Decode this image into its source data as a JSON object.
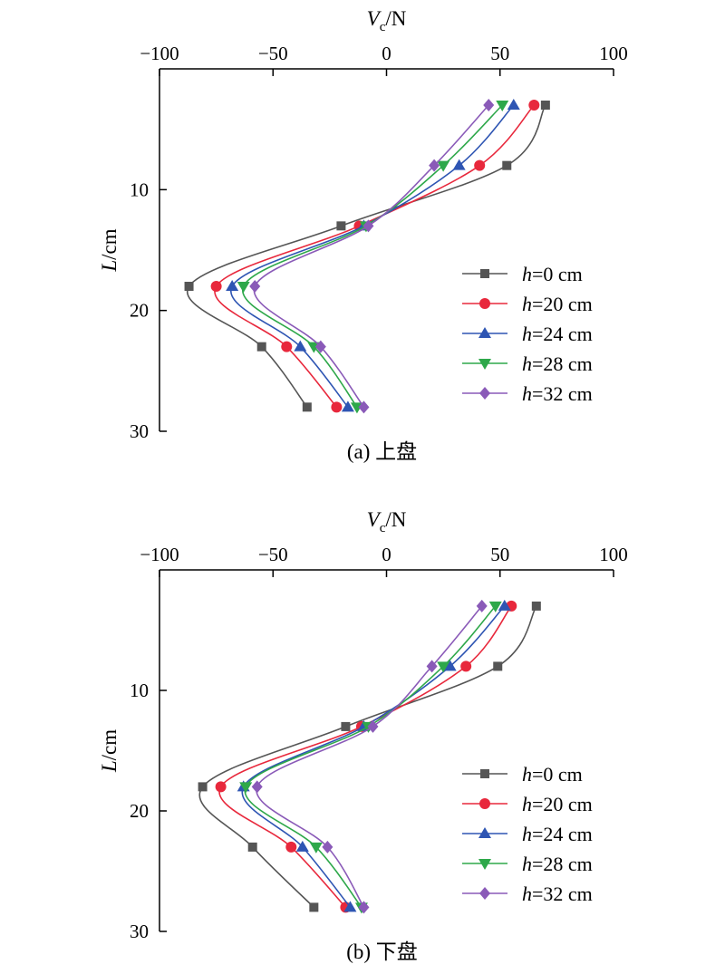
{
  "chart_data": [
    {
      "type": "line",
      "caption": "(a) 上盘",
      "x_axis": {
        "label_main": "V",
        "label_sub": "c",
        "label_unit": "/N",
        "lim": [
          -100,
          100
        ],
        "ticks": [
          -100,
          -50,
          0,
          50,
          100
        ],
        "tick_labels": [
          "−100",
          "−50",
          "0",
          "50",
          "100"
        ],
        "position": "top"
      },
      "y_axis": {
        "label_main": "L",
        "label_unit": "/cm",
        "lim": [
          0,
          30
        ],
        "ticks": [
          10,
          20,
          30
        ],
        "tick_labels": [
          "10",
          "20",
          "30"
        ],
        "inverted": true
      },
      "grid": false,
      "legend_position": "right",
      "series": [
        {
          "name_main": "h",
          "name_rest": "=0 cm",
          "color": "#555555",
          "marker": "square",
          "x": [
            70,
            53,
            -20,
            -87,
            -55,
            -35
          ],
          "y": [
            3,
            8,
            13,
            18,
            23,
            28
          ]
        },
        {
          "name_main": "h",
          "name_rest": "=20 cm",
          "color": "#e8283c",
          "marker": "circle",
          "x": [
            65,
            41,
            -12,
            -75,
            -44,
            -22
          ],
          "y": [
            3,
            8,
            13,
            18,
            23,
            28
          ]
        },
        {
          "name_main": "h",
          "name_rest": "=24 cm",
          "color": "#2e55b3",
          "marker": "triangle-up",
          "x": [
            56,
            32,
            -10,
            -68,
            -38,
            -17
          ],
          "y": [
            3,
            8,
            13,
            18,
            23,
            28
          ]
        },
        {
          "name_main": "h",
          "name_rest": "=28 cm",
          "color": "#2ea84a",
          "marker": "triangle-down",
          "x": [
            51,
            25,
            -9,
            -63,
            -32,
            -13
          ],
          "y": [
            3,
            8,
            13,
            18,
            23,
            28
          ]
        },
        {
          "name_main": "h",
          "name_rest": "=32 cm",
          "color": "#8a5ab8",
          "marker": "diamond",
          "x": [
            45,
            21,
            -8,
            -58,
            -29,
            -10
          ],
          "y": [
            3,
            8,
            13,
            18,
            23,
            28
          ]
        }
      ]
    },
    {
      "type": "line",
      "caption": "(b) 下盘",
      "x_axis": {
        "label_main": "V",
        "label_sub": "c",
        "label_unit": "/N",
        "lim": [
          -100,
          100
        ],
        "ticks": [
          -100,
          -50,
          0,
          50,
          100
        ],
        "tick_labels": [
          "−100",
          "−50",
          "0",
          "50",
          "100"
        ],
        "position": "top"
      },
      "y_axis": {
        "label_main": "L",
        "label_unit": "/cm",
        "lim": [
          0,
          30
        ],
        "ticks": [
          10,
          20,
          30
        ],
        "tick_labels": [
          "10",
          "20",
          "30"
        ],
        "inverted": true
      },
      "grid": false,
      "legend_position": "right",
      "series": [
        {
          "name_main": "h",
          "name_rest": "=0 cm",
          "color": "#555555",
          "marker": "square",
          "x": [
            66,
            49,
            -18,
            -81,
            -59,
            -32
          ],
          "y": [
            3,
            8,
            13,
            18,
            23,
            28
          ]
        },
        {
          "name_main": "h",
          "name_rest": "=20 cm",
          "color": "#e8283c",
          "marker": "circle",
          "x": [
            55,
            35,
            -11,
            -73,
            -42,
            -18
          ],
          "y": [
            3,
            8,
            13,
            18,
            23,
            28
          ]
        },
        {
          "name_main": "h",
          "name_rest": "=24 cm",
          "color": "#2e55b3",
          "marker": "triangle-up",
          "x": [
            52,
            28,
            -10,
            -63,
            -37,
            -16
          ],
          "y": [
            3,
            8,
            13,
            18,
            23,
            28
          ]
        },
        {
          "name_main": "h",
          "name_rest": "=28 cm",
          "color": "#2ea84a",
          "marker": "triangle-down",
          "x": [
            48,
            25,
            -8,
            -62,
            -31,
            -11
          ],
          "y": [
            3,
            8,
            13,
            18,
            23,
            28
          ]
        },
        {
          "name_main": "h",
          "name_rest": "=32 cm",
          "color": "#8a5ab8",
          "marker": "diamond",
          "x": [
            42,
            20,
            -6,
            -57,
            -26,
            -10
          ],
          "y": [
            3,
            8,
            13,
            18,
            23,
            28
          ]
        }
      ]
    }
  ]
}
